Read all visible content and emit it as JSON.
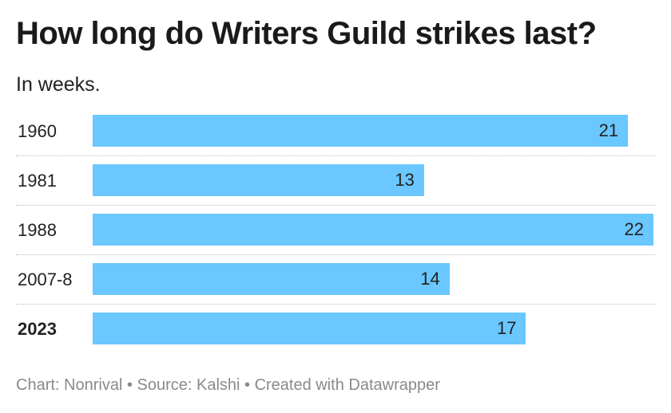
{
  "chart_data": {
    "type": "bar",
    "orientation": "horizontal",
    "title": "How long do Writers Guild strikes last?",
    "subtitle": "In weeks.",
    "categories": [
      "1960",
      "1981",
      "1988",
      "2007-8",
      "2023"
    ],
    "values": [
      21,
      13,
      22,
      14,
      17
    ],
    "highlight": "2023",
    "xlim": [
      0,
      22
    ],
    "grid": false,
    "colors": {
      "bar": "#6ac7ff",
      "text": "#222222",
      "footer": "#8a8a8a"
    }
  },
  "footer": {
    "text": "Chart: Nonrival • Source: Kalshi • Created with Datawrapper"
  }
}
